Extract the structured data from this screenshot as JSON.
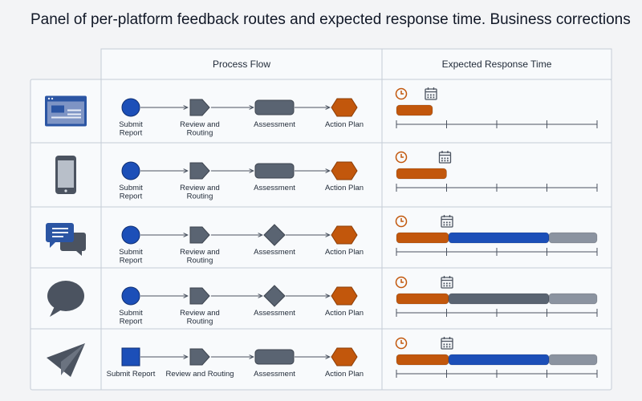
{
  "title": "Panel of per-platform feedback routes and expected response time. Business corrections",
  "headers": {
    "process": "Process Flow",
    "response": "Expected Response Time"
  },
  "colors": {
    "blue": "#1c4fb8",
    "gray": "#5a6472",
    "light_gray": "#8b93a0",
    "orange": "#c2570c",
    "icon_blue": "#2b55a3",
    "icon_gray": "#4b5360"
  },
  "rows": [
    {
      "platform_icon": "web-browser-icon",
      "steps": [
        {
          "label": [
            "Submit",
            "Report"
          ],
          "shape": "circle",
          "color": "blue"
        },
        {
          "label": [
            "Review and",
            "Routing"
          ],
          "shape": "chevron",
          "color": "gray"
        },
        {
          "label": [
            "Assessment"
          ],
          "shape": "rounded-rect",
          "color": "gray"
        },
        {
          "label": [
            "Action Plan"
          ],
          "shape": "hexagon",
          "color": "orange"
        }
      ],
      "response": {
        "bars": [
          {
            "from": 0,
            "to": 0.18,
            "color": "orange"
          }
        ]
      }
    },
    {
      "platform_icon": "mobile-phone-icon",
      "steps": [
        {
          "label": [
            "Submit",
            "Report"
          ],
          "shape": "circle",
          "color": "blue"
        },
        {
          "label": [
            "Review and",
            "Routing"
          ],
          "shape": "chevron",
          "color": "gray"
        },
        {
          "label": [
            "Assessment"
          ],
          "shape": "rounded-rect",
          "color": "gray"
        },
        {
          "label": [
            "Action Plan"
          ],
          "shape": "hexagon",
          "color": "orange"
        }
      ],
      "response": {
        "bars": [
          {
            "from": 0,
            "to": 0.25,
            "color": "orange"
          }
        ]
      }
    },
    {
      "platform_icon": "chat-bubbles-icon",
      "steps": [
        {
          "label": [
            "Submit",
            "Report"
          ],
          "shape": "circle",
          "color": "blue"
        },
        {
          "label": [
            "Review and",
            "Routing"
          ],
          "shape": "chevron",
          "color": "gray"
        },
        {
          "label": [
            "Assessment"
          ],
          "shape": "diamond",
          "color": "gray"
        },
        {
          "label": [
            "Action Plan"
          ],
          "shape": "hexagon",
          "color": "orange"
        }
      ],
      "response": {
        "bars": [
          {
            "from": 0,
            "to": 0.26,
            "color": "orange"
          },
          {
            "from": 0.26,
            "to": 0.76,
            "color": "blue"
          },
          {
            "from": 0.76,
            "to": 1.0,
            "color": "light_gray"
          }
        ]
      }
    },
    {
      "platform_icon": "speech-bubble-icon",
      "steps": [
        {
          "label": [
            "Submit",
            "Report"
          ],
          "shape": "circle",
          "color": "blue"
        },
        {
          "label": [
            "Review and",
            "Routing"
          ],
          "shape": "chevron",
          "color": "gray"
        },
        {
          "label": [
            "Assessment"
          ],
          "shape": "diamond",
          "color": "gray"
        },
        {
          "label": [
            "Action Plan"
          ],
          "shape": "hexagon",
          "color": "orange"
        }
      ],
      "response": {
        "bars": [
          {
            "from": 0,
            "to": 0.26,
            "color": "orange"
          },
          {
            "from": 0.26,
            "to": 0.76,
            "color": "gray"
          },
          {
            "from": 0.76,
            "to": 1.0,
            "color": "light_gray"
          }
        ]
      }
    },
    {
      "platform_icon": "paper-plane-icon",
      "steps": [
        {
          "label": [
            "Submit Report"
          ],
          "shape": "square",
          "color": "blue"
        },
        {
          "label": [
            "Review and Routing"
          ],
          "shape": "chevron",
          "color": "gray"
        },
        {
          "label": [
            "Assessment"
          ],
          "shape": "rounded-rect",
          "color": "gray"
        },
        {
          "label": [
            "Action Plan"
          ],
          "shape": "hexagon",
          "color": "orange"
        }
      ],
      "response": {
        "bars": [
          {
            "from": 0,
            "to": 0.26,
            "color": "orange"
          },
          {
            "from": 0.26,
            "to": 0.76,
            "color": "blue"
          },
          {
            "from": 0.76,
            "to": 1.0,
            "color": "light_gray"
          }
        ]
      }
    }
  ]
}
